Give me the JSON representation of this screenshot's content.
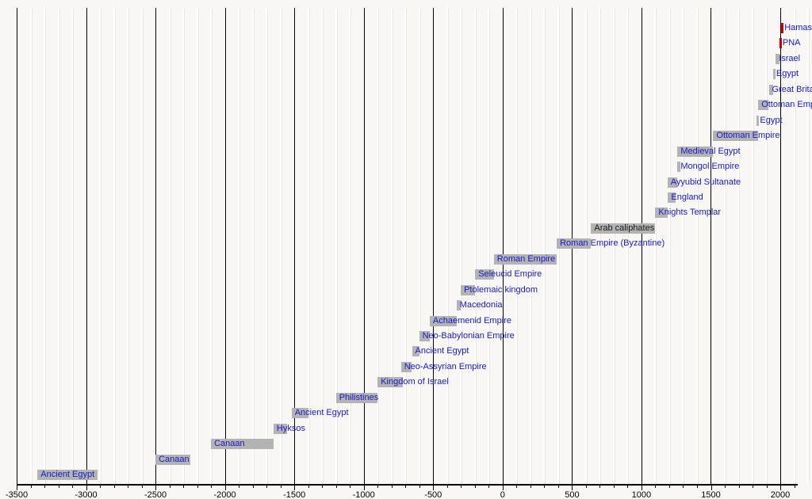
{
  "chart_data": {
    "type": "bar",
    "variant": "horizontal-timeline-gantt",
    "title": "",
    "xlabel": "",
    "ylabel": "",
    "legend": "none",
    "grid": "major black lines every 500 years, minor white lines every 100 years",
    "x_axis": {
      "unit": "year",
      "min": -3500,
      "max": 2125,
      "major_tick_step": 500,
      "minor_tick_step": 100,
      "tick_labels": [
        "-3500",
        "-3000",
        "-2500",
        "-2000",
        "-1500",
        "-1000",
        "-500",
        "0",
        "500",
        "1000",
        "1500",
        "2000"
      ]
    },
    "bars": [
      {
        "label": "Hamas",
        "begin": 2007,
        "end": 2024,
        "color": "red",
        "text": "blue"
      },
      {
        "label": "PNA",
        "begin": 1994,
        "end": 2007,
        "color": "red",
        "text": "blue"
      },
      {
        "label": "Israel",
        "begin": 1967,
        "end": 1994,
        "color": "gray",
        "text": "blue"
      },
      {
        "label": "Egypt",
        "begin": 1948,
        "end": 1967,
        "color": "gray",
        "text": "blue"
      },
      {
        "label": "Great Britain",
        "begin": 1917,
        "end": 1948,
        "color": "gray",
        "text": "blue"
      },
      {
        "label": "Ottoman Empire",
        "begin": 1841,
        "end": 1917,
        "color": "gray",
        "text": "blue"
      },
      {
        "label": "Egypt",
        "begin": 1831,
        "end": 1841,
        "color": "gray",
        "text": "blue"
      },
      {
        "label": "Ottoman Empire",
        "begin": 1517,
        "end": 1841,
        "color": "gray",
        "text": "blue"
      },
      {
        "label": "Medieval Egypt",
        "begin": 1260,
        "end": 1517,
        "color": "gray",
        "text": "blue"
      },
      {
        "label": "Mongol Empire",
        "begin": 1260,
        "end": 1280,
        "color": "gray",
        "text": "blue"
      },
      {
        "label": "Ayyubid Sultanate",
        "begin": 1187,
        "end": 1260,
        "color": "gray",
        "text": "blue"
      },
      {
        "label": "England",
        "begin": 1191,
        "end": 1244,
        "color": "gray",
        "text": "blue"
      },
      {
        "label": "Knights Templar",
        "begin": 1100,
        "end": 1187,
        "color": "gray",
        "text": "blue"
      },
      {
        "label": "Arab caliphates",
        "begin": 637,
        "end": 1100,
        "color": "gray",
        "text": "black"
      },
      {
        "label": "Roman Empire (Byzantine)",
        "begin": 390,
        "end": 637,
        "color": "gray",
        "text": "blue"
      },
      {
        "label": "Roman Empire",
        "begin": -63,
        "end": 390,
        "color": "gray",
        "text": "blue"
      },
      {
        "label": "Seleucid Empire",
        "begin": -198,
        "end": -63,
        "color": "gray",
        "text": "blue"
      },
      {
        "label": "Ptolemaic kingdom",
        "begin": -301,
        "end": -198,
        "color": "gray",
        "text": "blue"
      },
      {
        "label": "Macedonia",
        "begin": -332,
        "end": -301,
        "color": "gray",
        "text": "blue"
      },
      {
        "label": "Achaemenid Empire",
        "begin": -525,
        "end": -332,
        "color": "gray",
        "text": "blue"
      },
      {
        "label": "Neo-Babylonian Empire",
        "begin": -601,
        "end": -525,
        "color": "gray",
        "text": "blue"
      },
      {
        "label": "Ancient Egypt",
        "begin": -653,
        "end": -601,
        "color": "gray",
        "text": "blue"
      },
      {
        "label": "Neo-Assyrian Empire",
        "begin": -732,
        "end": -653,
        "color": "gray",
        "text": "blue"
      },
      {
        "label": "Kingdom of Israel",
        "begin": -900,
        "end": -720,
        "color": "gray",
        "text": "blue"
      },
      {
        "label": "Philistines",
        "begin": -1200,
        "end": -900,
        "color": "gray",
        "text": "blue"
      },
      {
        "label": "Ancient Egypt",
        "begin": -1520,
        "end": -1400,
        "color": "gray",
        "text": "blue"
      },
      {
        "label": "Hyksos",
        "begin": -1650,
        "end": -1550,
        "color": "gray",
        "text": "blue"
      },
      {
        "label": "Canaan",
        "begin": -2100,
        "end": -1650,
        "color": "gray",
        "text": "blue"
      },
      {
        "label": "Canaan",
        "begin": -2500,
        "end": -2250,
        "color": "gray",
        "text": "blue"
      },
      {
        "label": "Ancient Egypt",
        "begin": -3350,
        "end": -2920,
        "color": "gray",
        "text": "blue"
      }
    ]
  },
  "colors": {
    "background": "#f8f7f4",
    "bar_gray": "#b3b3b3",
    "bar_red": "#d10000",
    "label_blue": "#1818cc",
    "label_black": "#1a1a1a",
    "grid_major": "#000000",
    "grid_minor": "#ffffff",
    "axis": "#000000"
  }
}
